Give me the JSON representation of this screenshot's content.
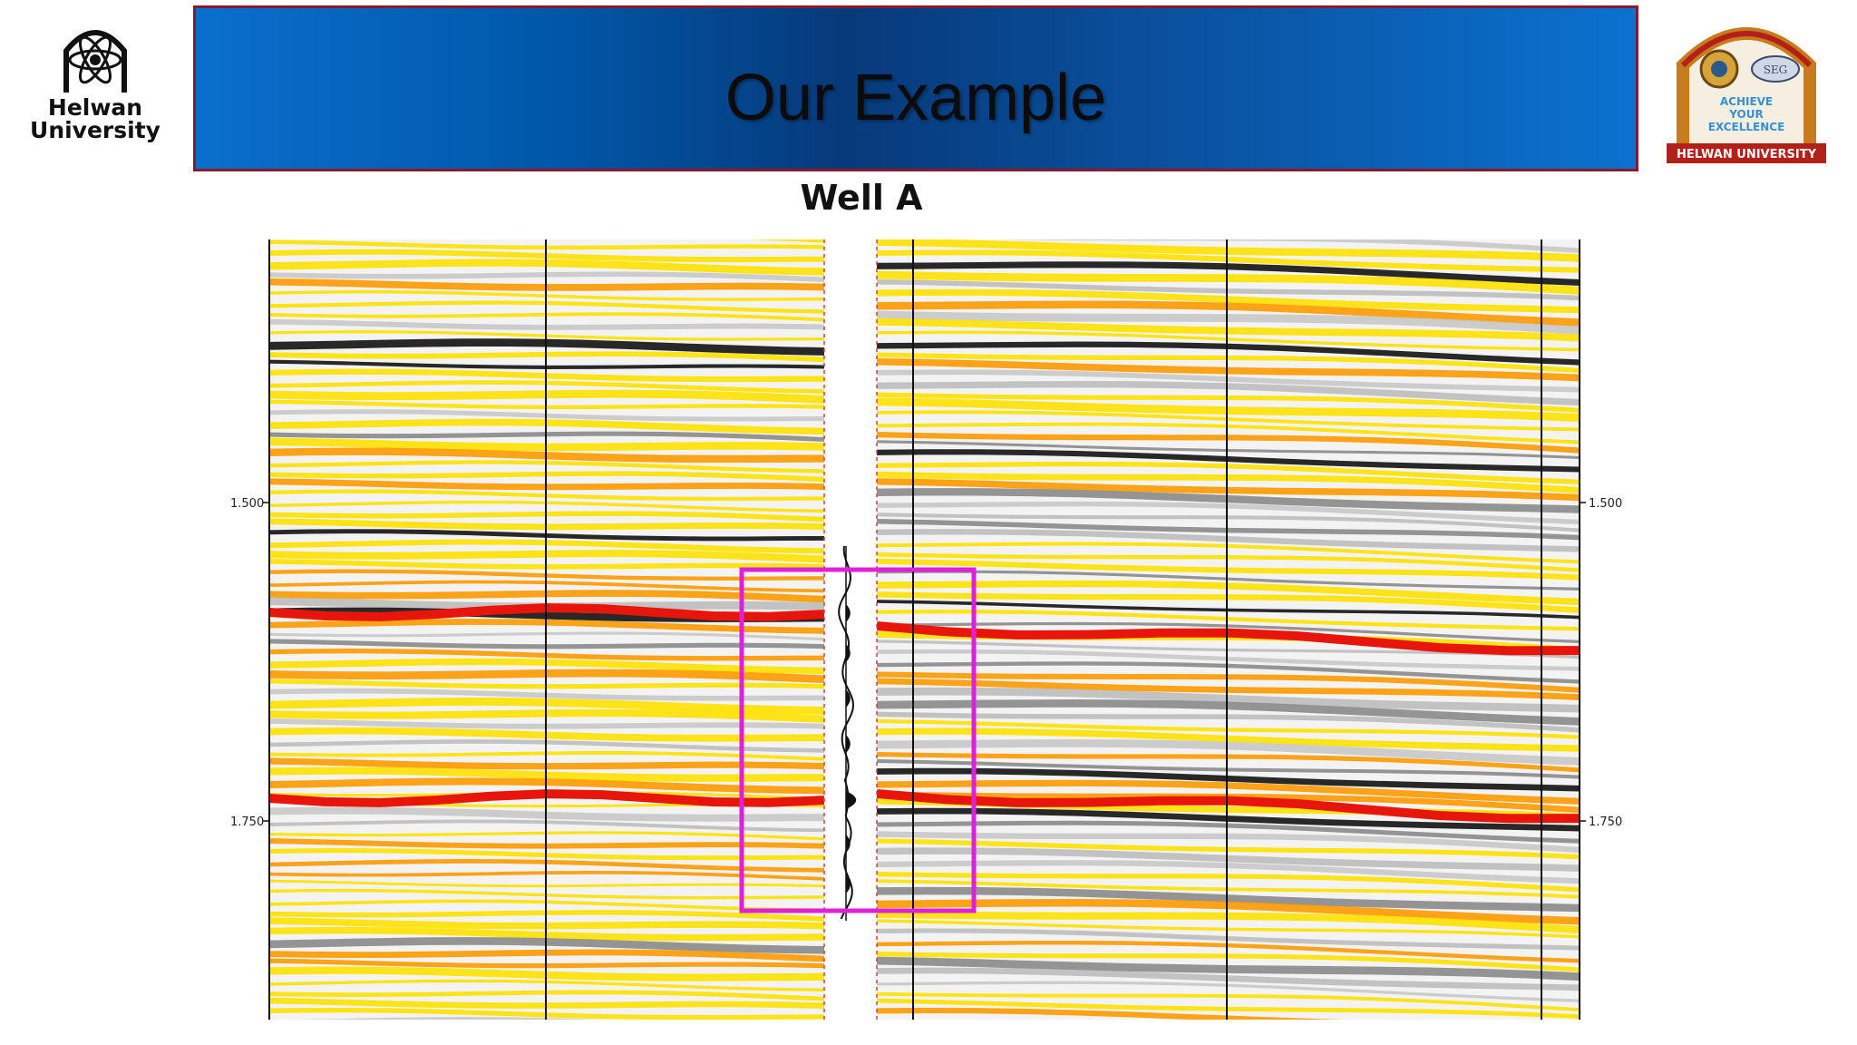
{
  "slide": {
    "title": "Our Example",
    "well_label": "Well A",
    "left_logo": {
      "line1": "Helwan",
      "line2": "University"
    },
    "right_logo": {
      "text_top": "ACHIEVE",
      "text_mid": "YOUR",
      "text_bot": "EXCELLENCE",
      "banner": "HELWAN UNIVERSITY",
      "badge": "SEG"
    }
  },
  "section": {
    "time_labels": [
      "1.500",
      "1.750"
    ],
    "colors": {
      "yellow": "#ffe100",
      "orange": "#ff9a00",
      "red": "#e8160a",
      "grey": "#8a8a8a",
      "black": "#121212",
      "box": "#e020d6"
    }
  }
}
